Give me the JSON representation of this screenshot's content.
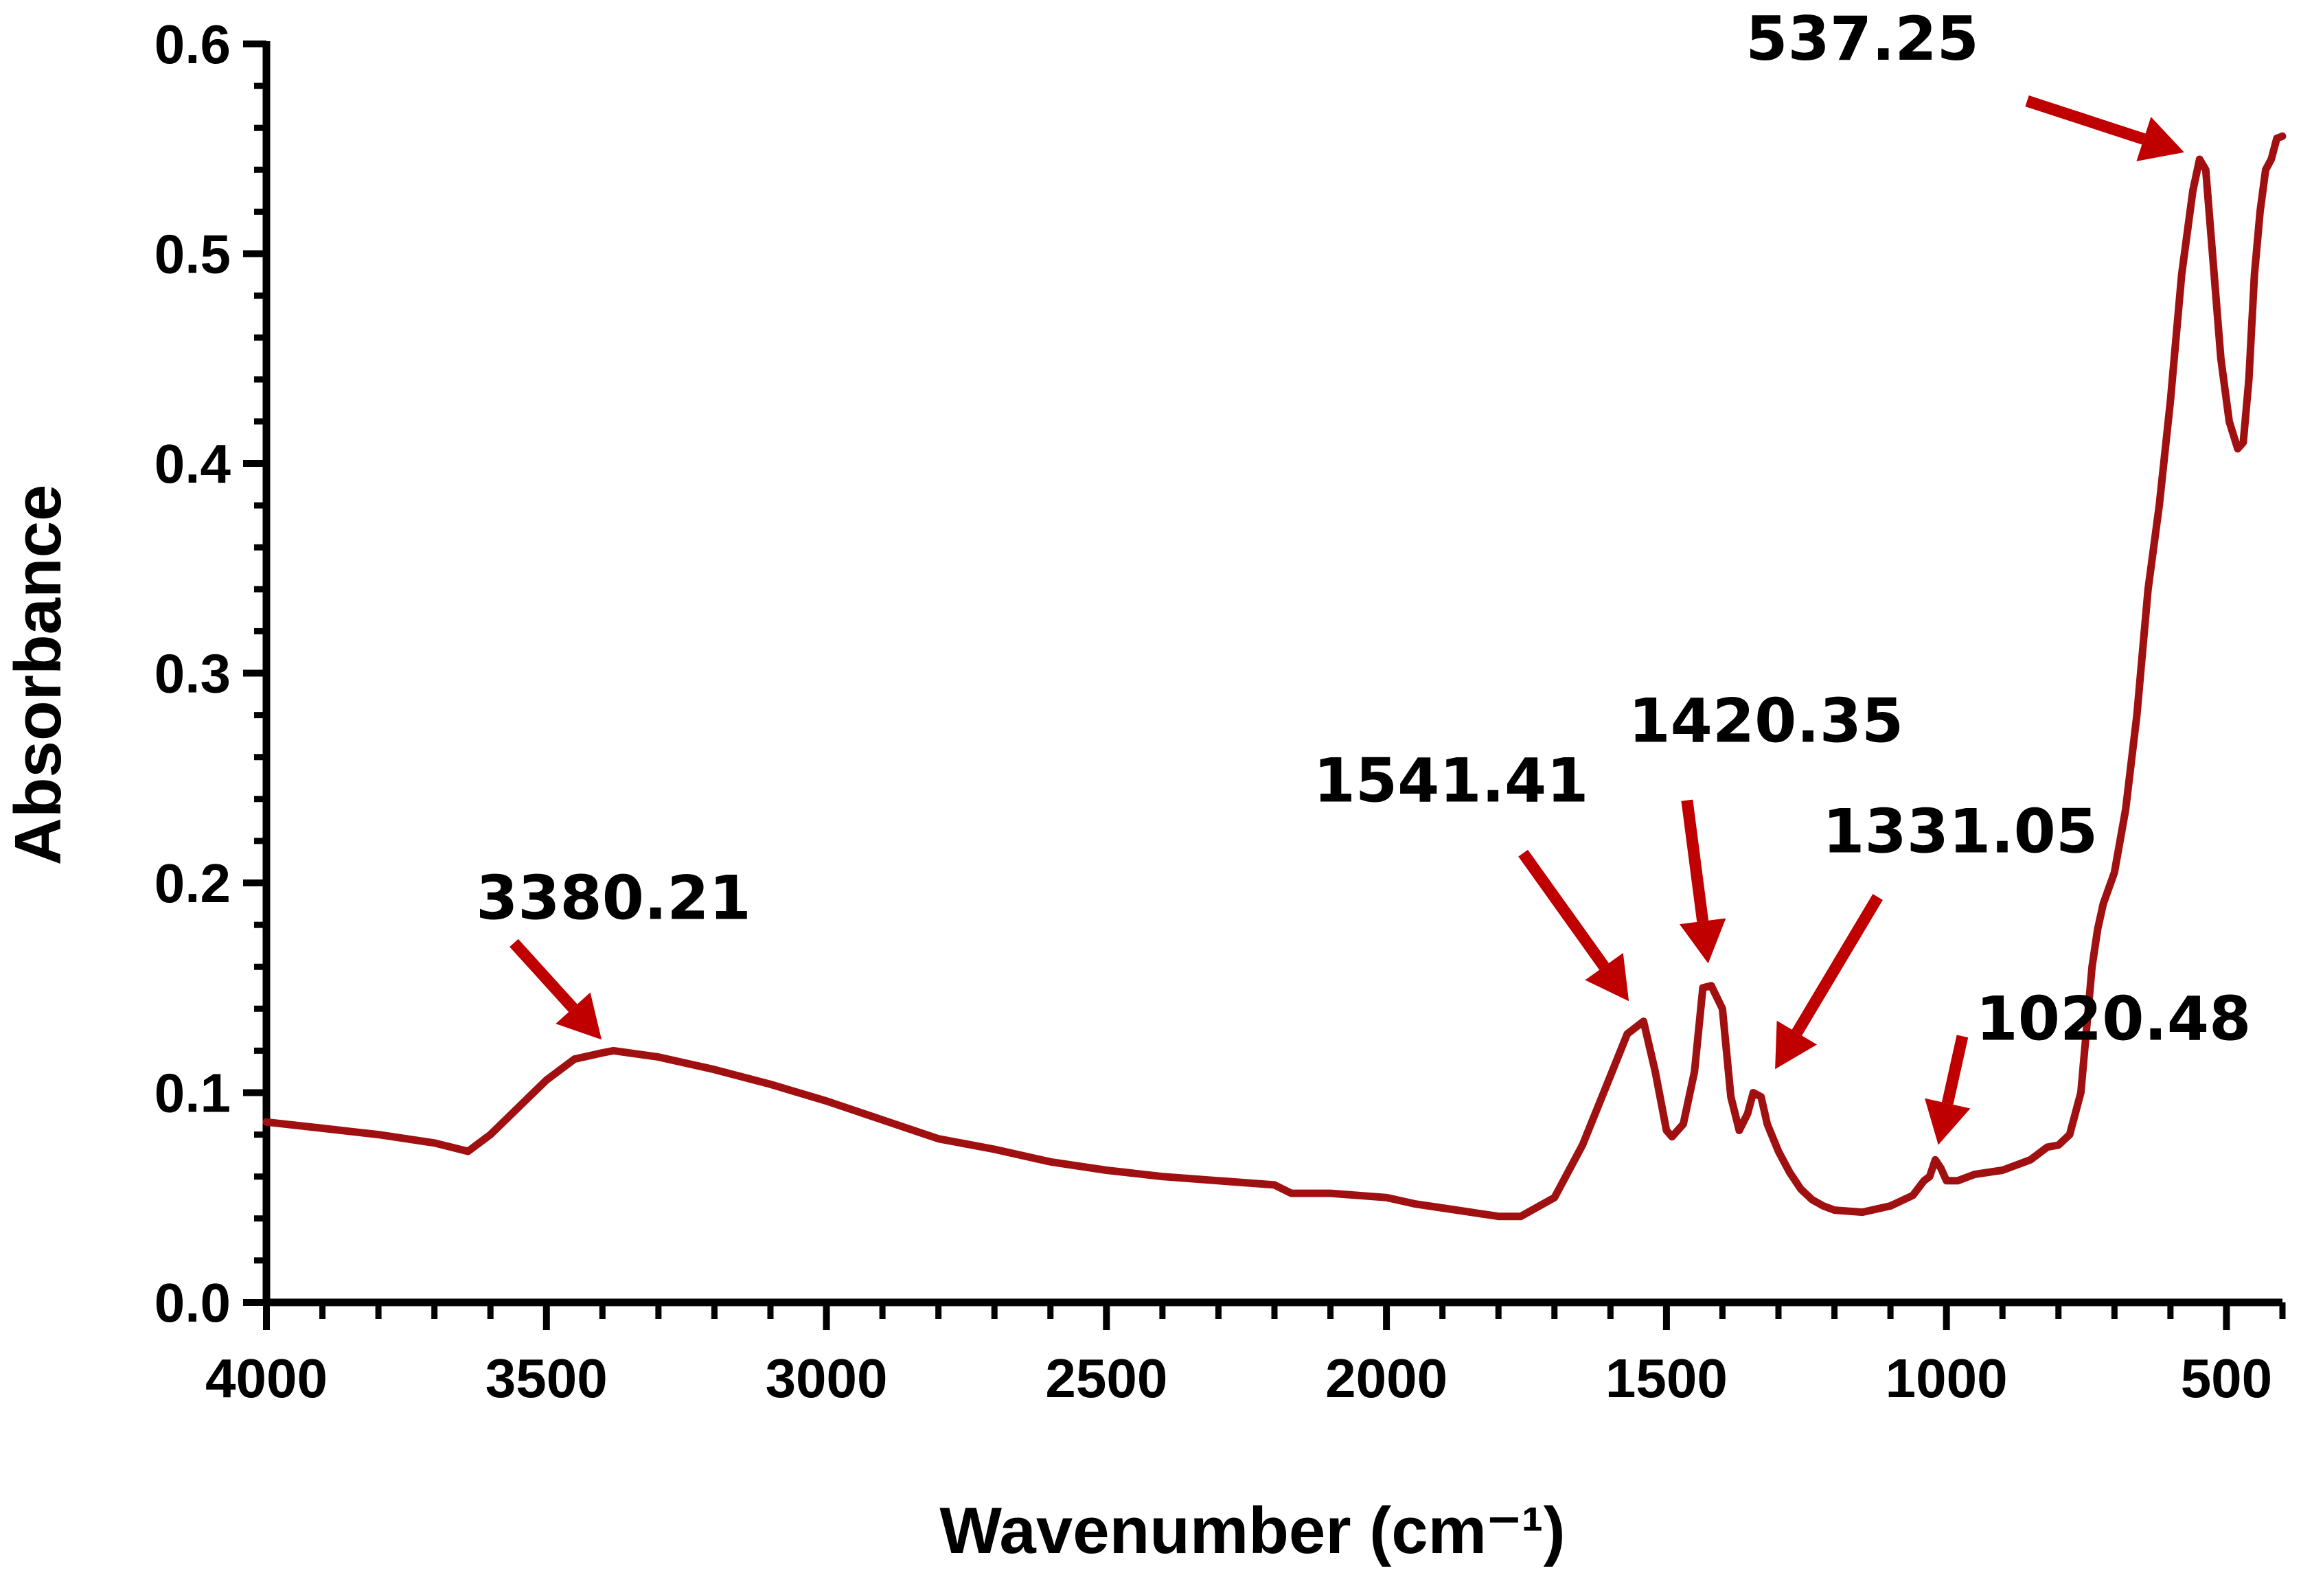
{
  "chart_data": {
    "type": "line",
    "xlabel": "Wavenumber  (cm⁻¹)",
    "ylabel": "Absorbance",
    "xlim": [
      4000,
      400
    ],
    "ylim": [
      0,
      0.6
    ],
    "x_ticks": [
      4000,
      3500,
      3000,
      2500,
      2000,
      1500,
      1000,
      500
    ],
    "y_ticks": [
      0.0,
      0.1,
      0.2,
      0.3,
      0.4,
      0.5,
      0.6
    ],
    "x_tick_labels": [
      "4000",
      "3500",
      "3000",
      "2500",
      "2000",
      "1500",
      "1000",
      "500"
    ],
    "y_tick_labels": [
      "0.0",
      "0.1",
      "0.2",
      "0.3",
      "0.4",
      "0.5",
      "0.6"
    ],
    "grid": false,
    "line_color": "#a01010",
    "arrow_color": "#c00000",
    "series": [
      {
        "x": [
          4000,
          3900,
          3800,
          3700,
          3640,
          3600,
          3550,
          3500,
          3450,
          3400,
          3380,
          3300,
          3200,
          3100,
          3000,
          2900,
          2800,
          2700,
          2600,
          2500,
          2400,
          2300,
          2200,
          2170,
          2100,
          2000,
          1950,
          1900,
          1850,
          1800,
          1760,
          1700,
          1650,
          1600,
          1570,
          1541,
          1520,
          1500,
          1490,
          1470,
          1450,
          1435,
          1420,
          1400,
          1385,
          1370,
          1355,
          1345,
          1331,
          1320,
          1300,
          1280,
          1260,
          1240,
          1220,
          1200,
          1150,
          1100,
          1060,
          1040,
          1030,
          1020,
          1010,
          1000,
          980,
          950,
          900,
          850,
          820,
          800,
          780,
          760,
          750,
          740,
          730,
          720,
          700,
          680,
          660,
          640,
          620,
          600,
          580,
          560,
          548,
          537,
          525,
          510,
          495,
          480,
          470,
          460,
          450,
          440,
          430,
          420,
          410,
          400
        ],
        "y": [
          0.086,
          0.083,
          0.08,
          0.076,
          0.072,
          0.08,
          0.093,
          0.106,
          0.116,
          0.119,
          0.12,
          0.117,
          0.111,
          0.104,
          0.096,
          0.087,
          0.078,
          0.073,
          0.067,
          0.063,
          0.06,
          0.058,
          0.056,
          0.052,
          0.052,
          0.05,
          0.047,
          0.045,
          0.043,
          0.041,
          0.041,
          0.05,
          0.075,
          0.108,
          0.128,
          0.134,
          0.11,
          0.082,
          0.079,
          0.085,
          0.11,
          0.15,
          0.151,
          0.14,
          0.098,
          0.082,
          0.09,
          0.1,
          0.098,
          0.085,
          0.072,
          0.062,
          0.054,
          0.049,
          0.046,
          0.044,
          0.043,
          0.046,
          0.051,
          0.058,
          0.06,
          0.068,
          0.064,
          0.058,
          0.058,
          0.061,
          0.063,
          0.068,
          0.074,
          0.075,
          0.08,
          0.1,
          0.13,
          0.16,
          0.178,
          0.19,
          0.205,
          0.235,
          0.28,
          0.34,
          0.38,
          0.43,
          0.49,
          0.53,
          0.545,
          0.54,
          0.5,
          0.45,
          0.42,
          0.407,
          0.41,
          0.44,
          0.49,
          0.52,
          0.54,
          0.545,
          0.555,
          0.556
        ]
      }
    ],
    "annotations": [
      {
        "label": "3380.21",
        "x": 3380.21,
        "y": 0.119
      },
      {
        "label": "1541.41",
        "x": 1541.41,
        "y": 0.134
      },
      {
        "label": "1420.35",
        "x": 1420.35,
        "y": 0.151
      },
      {
        "label": "1331.05",
        "x": 1331.05,
        "y": 0.1
      },
      {
        "label": "1020.48",
        "x": 1020.48,
        "y": 0.068
      },
      {
        "label": "537.25",
        "x": 537.25,
        "y": 0.545
      }
    ]
  }
}
